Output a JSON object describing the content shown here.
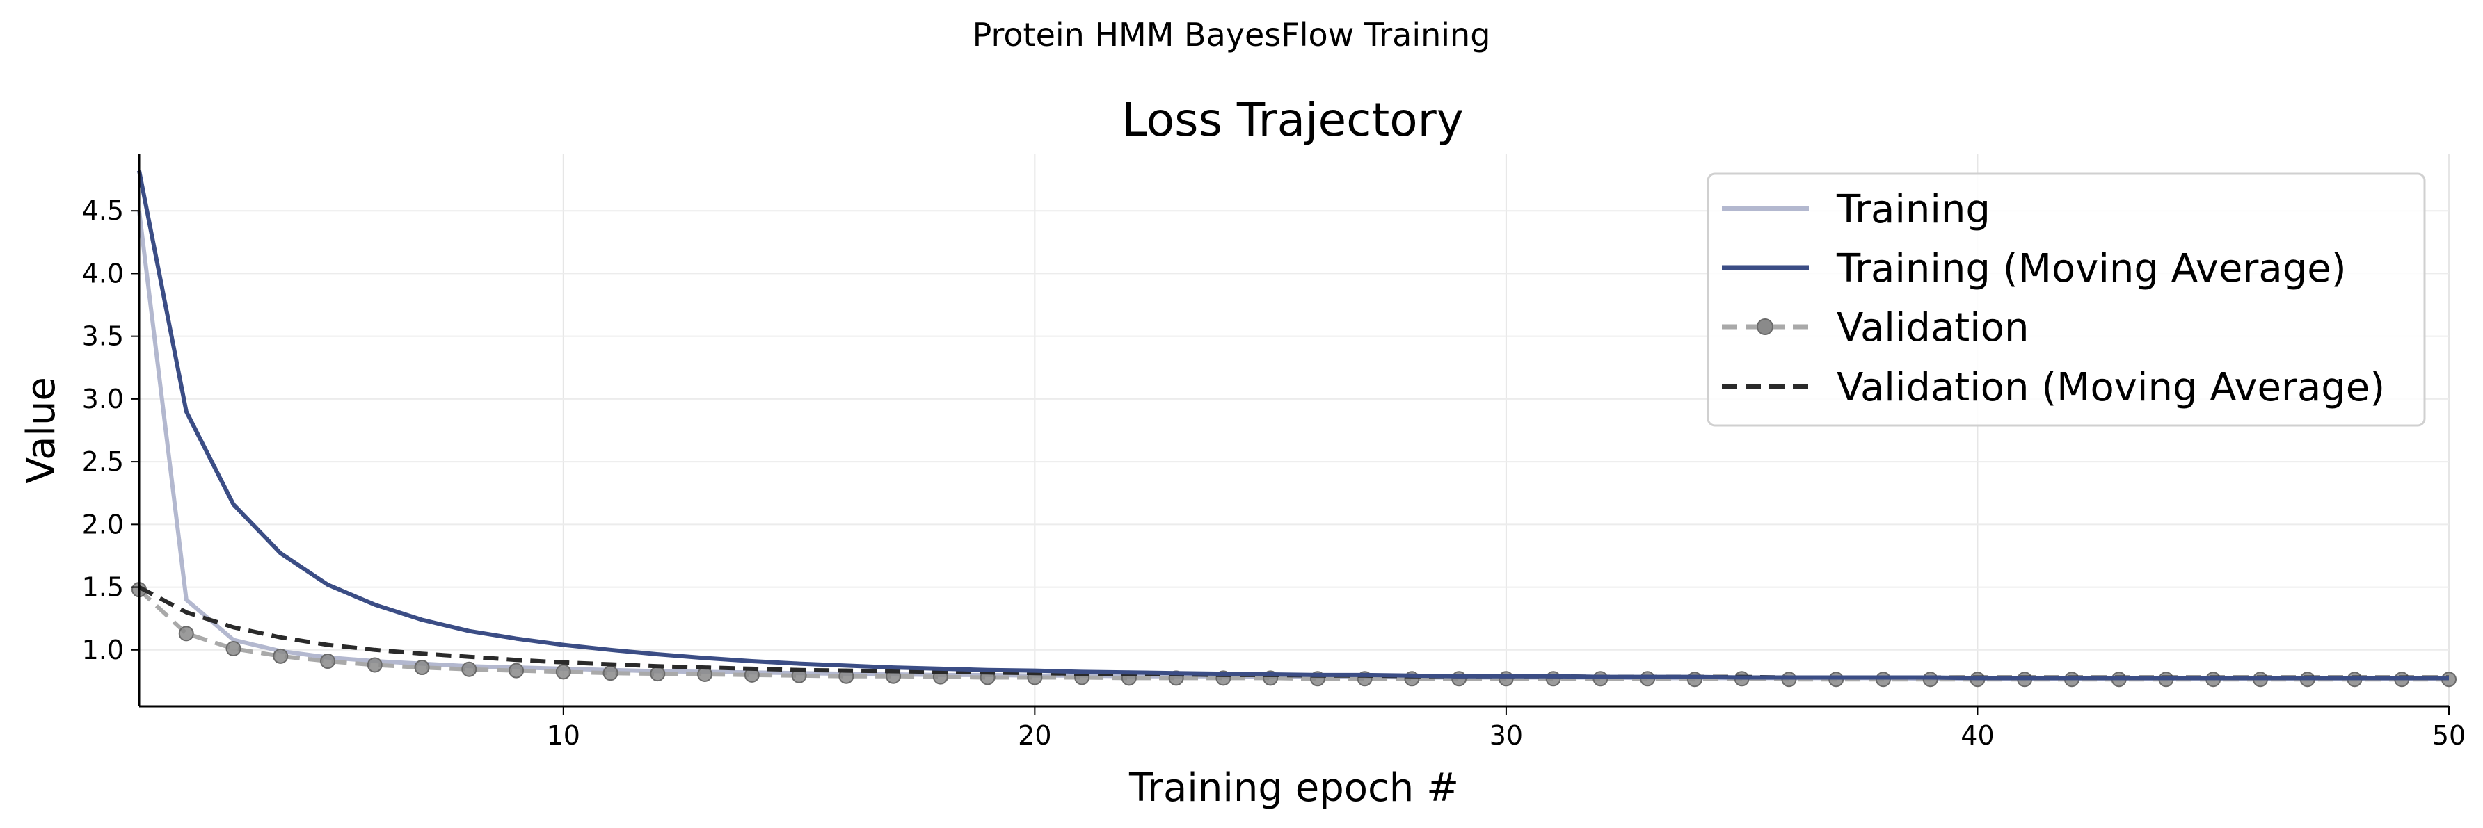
{
  "chart_data": {
    "type": "line",
    "suptitle": "Protein HMM BayesFlow Training",
    "title": "Loss Trajectory",
    "xlabel": "Training epoch #",
    "ylabel": "Value",
    "xlim": [
      1,
      50
    ],
    "ylim": [
      0.55,
      4.95
    ],
    "xticks": [
      10,
      20,
      30,
      40,
      50
    ],
    "yticks": [
      1.0,
      1.5,
      2.0,
      2.5,
      3.0,
      3.5,
      4.0,
      4.5
    ],
    "grid": true,
    "legend_position": "top-right",
    "x": [
      1,
      2,
      3,
      4,
      5,
      6,
      7,
      8,
      9,
      10,
      11,
      12,
      13,
      14,
      15,
      16,
      17,
      18,
      19,
      20,
      21,
      22,
      23,
      24,
      25,
      26,
      27,
      28,
      29,
      30,
      31,
      32,
      33,
      34,
      35,
      36,
      37,
      38,
      39,
      40,
      41,
      42,
      43,
      44,
      45,
      46,
      47,
      48,
      49,
      50
    ],
    "series": [
      {
        "name": "Training",
        "color": "#b3b8cf",
        "style": "solid",
        "values": [
          4.5,
          1.4,
          1.08,
          0.99,
          0.94,
          0.91,
          0.89,
          0.87,
          0.86,
          0.85,
          0.84,
          0.83,
          0.825,
          0.82,
          0.815,
          0.81,
          0.805,
          0.8,
          0.8,
          0.795,
          0.795,
          0.79,
          0.79,
          0.79,
          0.785,
          0.785,
          0.785,
          0.78,
          0.78,
          0.78,
          0.78,
          0.78,
          0.775,
          0.775,
          0.775,
          0.775,
          0.775,
          0.775,
          0.77,
          0.77,
          0.77,
          0.77,
          0.77,
          0.77,
          0.77,
          0.77,
          0.77,
          0.77,
          0.77,
          0.77
        ]
      },
      {
        "name": "Training (Moving Average)",
        "color": "#3b4d85",
        "style": "solid",
        "values": [
          4.82,
          2.9,
          2.16,
          1.77,
          1.52,
          1.36,
          1.24,
          1.15,
          1.09,
          1.04,
          1.0,
          0.965,
          0.935,
          0.91,
          0.89,
          0.875,
          0.86,
          0.85,
          0.84,
          0.835,
          0.825,
          0.82,
          0.815,
          0.81,
          0.805,
          0.8,
          0.8,
          0.795,
          0.79,
          0.79,
          0.79,
          0.785,
          0.785,
          0.785,
          0.78,
          0.78,
          0.78,
          0.78,
          0.78,
          0.775,
          0.775,
          0.775,
          0.775,
          0.775,
          0.775,
          0.775,
          0.775,
          0.775,
          0.775,
          0.775
        ]
      },
      {
        "name": "Validation",
        "color": "#a9a9a9",
        "style": "dashed-marker",
        "values": [
          1.48,
          1.13,
          1.01,
          0.95,
          0.91,
          0.88,
          0.86,
          0.845,
          0.835,
          0.825,
          0.815,
          0.81,
          0.805,
          0.8,
          0.795,
          0.79,
          0.79,
          0.785,
          0.78,
          0.78,
          0.78,
          0.775,
          0.775,
          0.775,
          0.775,
          0.77,
          0.77,
          0.77,
          0.77,
          0.77,
          0.77,
          0.77,
          0.77,
          0.765,
          0.77,
          0.765,
          0.765,
          0.765,
          0.765,
          0.765,
          0.765,
          0.765,
          0.765,
          0.765,
          0.765,
          0.765,
          0.765,
          0.765,
          0.765,
          0.765
        ]
      },
      {
        "name": "Validation (Moving Average)",
        "color": "#2a2a2a",
        "style": "dashed",
        "values": [
          1.5,
          1.3,
          1.18,
          1.1,
          1.04,
          1.0,
          0.97,
          0.945,
          0.92,
          0.9,
          0.885,
          0.87,
          0.86,
          0.85,
          0.84,
          0.835,
          0.83,
          0.825,
          0.82,
          0.815,
          0.81,
          0.81,
          0.805,
          0.8,
          0.8,
          0.795,
          0.795,
          0.79,
          0.79,
          0.79,
          0.79,
          0.785,
          0.785,
          0.785,
          0.785,
          0.78,
          0.78,
          0.78,
          0.78,
          0.78,
          0.78,
          0.78,
          0.78,
          0.78,
          0.78,
          0.78,
          0.78,
          0.78,
          0.78,
          0.78
        ]
      }
    ]
  }
}
